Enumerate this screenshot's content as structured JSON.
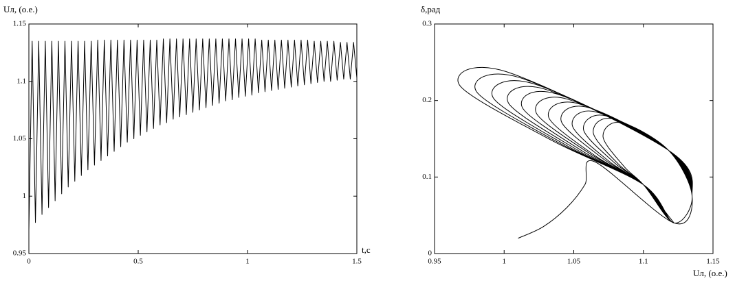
{
  "chart_data": [
    {
      "type": "line",
      "ylabel": "Uл, (о.е.)",
      "xlabel": "t,c",
      "color": "#000000",
      "xlim": [
        0,
        1.5
      ],
      "xticks": [
        0,
        0.5,
        1,
        1.5
      ],
      "ylim": [
        0.95,
        1.15
      ],
      "yticks": [
        0.95,
        1,
        1.05,
        1.1,
        1.15
      ],
      "x": [
        0,
        0.015,
        0.03,
        0.045,
        0.06,
        0.075,
        0.09,
        0.105,
        0.12,
        0.135,
        0.15,
        0.165,
        0.18,
        0.195,
        0.21,
        0.225,
        0.24,
        0.255,
        0.27,
        0.285,
        0.3,
        0.315,
        0.33,
        0.345,
        0.36,
        0.375,
        0.39,
        0.405,
        0.42,
        0.435,
        0.45,
        0.465,
        0.48,
        0.495,
        0.51,
        0.525,
        0.54,
        0.555,
        0.57,
        0.585,
        0.6,
        0.615,
        0.63,
        0.645,
        0.66,
        0.675,
        0.69,
        0.705,
        0.72,
        0.735,
        0.75,
        0.765,
        0.78,
        0.795,
        0.81,
        0.825,
        0.84,
        0.855,
        0.87,
        0.885,
        0.9,
        0.915,
        0.93,
        0.945,
        0.96,
        0.975,
        0.99,
        1.005,
        1.02,
        1.035,
        1.05,
        1.065,
        1.08,
        1.095,
        1.11,
        1.125,
        1.14,
        1.155,
        1.17,
        1.185,
        1.2,
        1.215,
        1.23,
        1.245,
        1.26,
        1.275,
        1.29,
        1.305,
        1.32,
        1.335,
        1.35,
        1.365,
        1.38,
        1.395,
        1.41,
        1.425,
        1.44,
        1.455,
        1.47,
        1.485,
        1.5
      ],
      "values": [
        0.97,
        1.135,
        0.977,
        1.135,
        0.984,
        1.135,
        0.99,
        1.135,
        0.996,
        1.135,
        1.002,
        1.135,
        1.008,
        1.135,
        1.013,
        1.135,
        1.018,
        1.135,
        1.023,
        1.135,
        1.027,
        1.136,
        1.031,
        1.136,
        1.035,
        1.136,
        1.039,
        1.136,
        1.043,
        1.136,
        1.047,
        1.136,
        1.05,
        1.136,
        1.053,
        1.136,
        1.056,
        1.136,
        1.059,
        1.136,
        1.062,
        1.137,
        1.064,
        1.137,
        1.067,
        1.137,
        1.069,
        1.137,
        1.071,
        1.137,
        1.073,
        1.137,
        1.075,
        1.137,
        1.077,
        1.137,
        1.079,
        1.137,
        1.081,
        1.137,
        1.083,
        1.137,
        1.084,
        1.137,
        1.086,
        1.137,
        1.087,
        1.137,
        1.088,
        1.137,
        1.09,
        1.136,
        1.091,
        1.136,
        1.092,
        1.136,
        1.093,
        1.136,
        1.094,
        1.136,
        1.095,
        1.136,
        1.096,
        1.136,
        1.097,
        1.136,
        1.098,
        1.135,
        1.099,
        1.135,
        1.1,
        1.135,
        1.1,
        1.135,
        1.101,
        1.134,
        1.102,
        1.134,
        1.102,
        1.134,
        1.103
      ]
    },
    {
      "type": "line",
      "ylabel": "δ,рад",
      "xlabel": "Uл, (о.е.)",
      "color": "#000000",
      "xlim": [
        0.95,
        1.15
      ],
      "xticks": [
        0.95,
        1,
        1.05,
        1.1,
        1.15
      ],
      "ylim": [
        0,
        0.3
      ],
      "yticks": [
        0,
        0.1,
        0.2,
        0.3
      ],
      "x": [
        1.01,
        1.028,
        1.045,
        1.058,
        1.065,
        1.122,
        1.135,
        1.118,
        1.001,
        0.968,
        1.034,
        1.1,
        1.122,
        1.135,
        1.118,
        1.011,
        0.98,
        1.04,
        1.1,
        1.122,
        1.135,
        1.118,
        1.021,
        0.992,
        1.046,
        1.1,
        1.122,
        1.135,
        1.118,
        1.029,
        1.003,
        1.052,
        1.1,
        1.122,
        1.135,
        1.118,
        1.037,
        1.013,
        1.057,
        1.1,
        1.122,
        1.135,
        1.118,
        1.045,
        1.023,
        1.062,
        1.1,
        1.122,
        1.135,
        1.118,
        1.053,
        1.032,
        1.066,
        1.1,
        1.122,
        1.135,
        1.118,
        1.06,
        1.041,
        1.071,
        1.1,
        1.122,
        1.135,
        1.118,
        1.066,
        1.049,
        1.075,
        1.1,
        1.122,
        1.135,
        1.118,
        1.073,
        1.057,
        1.079,
        1.1,
        1.122,
        1.135,
        1.118,
        1.078,
        1.064,
        1.082,
        1.1,
        1.122,
        1.135,
        1.118,
        1.084,
        1.071,
        1.086,
        1.1,
        1.122
      ],
      "values": [
        0.02,
        0.035,
        0.06,
        0.09,
        0.12,
        0.04,
        0.075,
        0.135,
        0.238,
        0.22,
        0.148,
        0.09,
        0.04,
        0.075,
        0.135,
        0.23,
        0.212,
        0.144,
        0.09,
        0.04,
        0.075,
        0.135,
        0.222,
        0.204,
        0.14,
        0.09,
        0.04,
        0.075,
        0.135,
        0.215,
        0.197,
        0.136,
        0.09,
        0.04,
        0.075,
        0.135,
        0.209,
        0.191,
        0.133,
        0.09,
        0.04,
        0.075,
        0.135,
        0.202,
        0.184,
        0.13,
        0.09,
        0.04,
        0.075,
        0.135,
        0.196,
        0.178,
        0.127,
        0.09,
        0.04,
        0.075,
        0.135,
        0.191,
        0.173,
        0.124,
        0.09,
        0.04,
        0.075,
        0.135,
        0.185,
        0.167,
        0.121,
        0.09,
        0.04,
        0.075,
        0.135,
        0.18,
        0.162,
        0.119,
        0.09,
        0.04,
        0.075,
        0.135,
        0.176,
        0.158,
        0.117,
        0.09,
        0.04,
        0.075,
        0.135,
        0.171,
        0.153,
        0.114,
        0.09,
        0.04
      ]
    }
  ]
}
